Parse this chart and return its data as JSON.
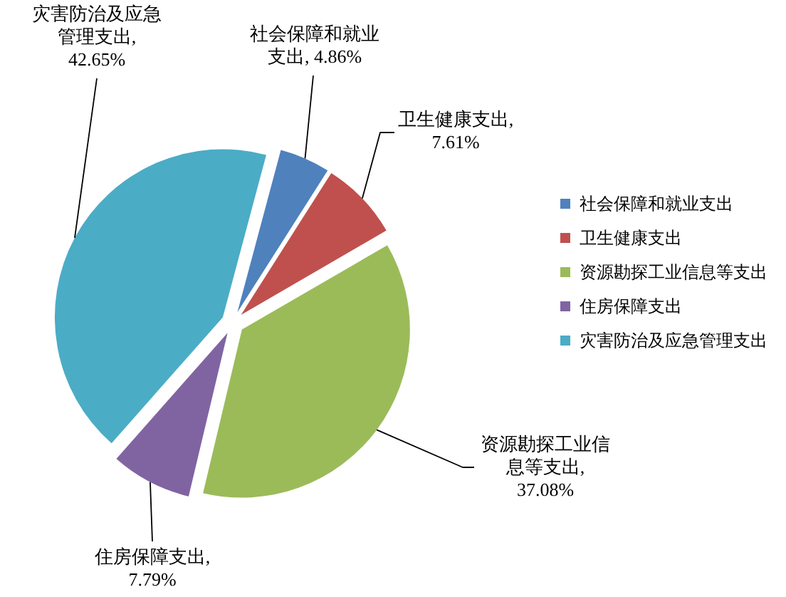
{
  "chart_data": {
    "type": "pie",
    "categories": [
      "社会保障和就业支出",
      "卫生健康支出",
      "资源勘探工业信息等支出",
      "住房保障支出",
      "灾害防治及应急管理支出"
    ],
    "values": [
      4.86,
      7.61,
      37.08,
      7.79,
      42.65
    ],
    "colors": [
      "#4f81bd",
      "#c0504d",
      "#9bbb59",
      "#8064a2",
      "#4bacc6"
    ],
    "value_labels": [
      "社会保障和就业支出, 4.86%",
      "卫生健康支出, 7.61%",
      "资源勘探工业信息等支出, 37.08%",
      "住房保障支出, 7.79%",
      "灾害防治及应急管理支出, 42.65%"
    ],
    "legend": "right"
  }
}
